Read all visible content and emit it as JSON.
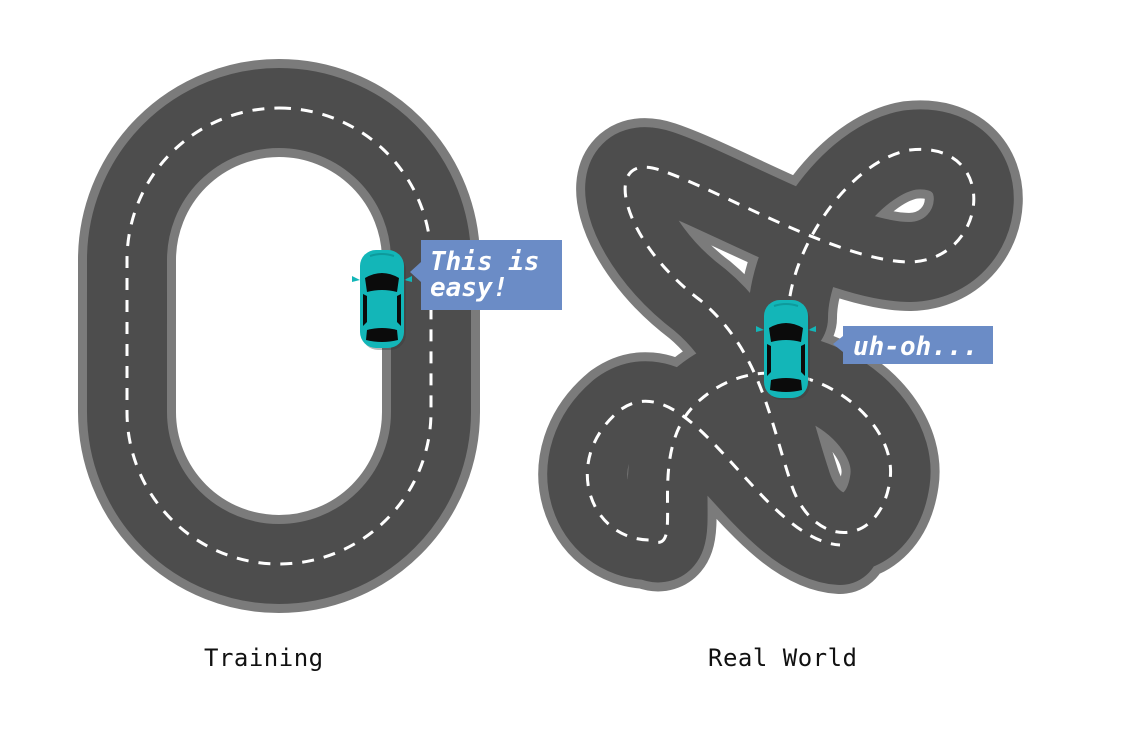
{
  "panels": {
    "training": {
      "caption": "Training",
      "bubble_lines": [
        "This is",
        "easy!"
      ]
    },
    "real_world": {
      "caption": "Real World",
      "bubble_text": "uh-oh..."
    }
  },
  "colors": {
    "road_edge": "#7b7b7b",
    "road_surface": "#4d4d4d",
    "lane_marking": "#ffffff",
    "car_body": "#13b6b8",
    "car_glass": "#0b0b0b",
    "bubble_fill": "#6b8cc6",
    "bubble_text": "#ffffff"
  }
}
